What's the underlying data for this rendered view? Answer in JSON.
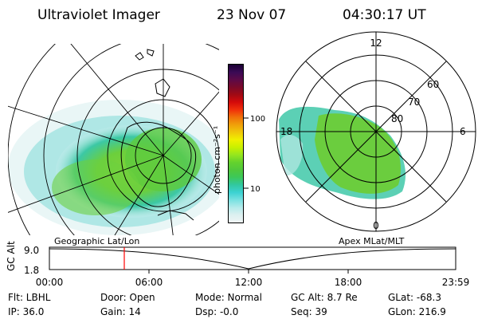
{
  "header": {
    "title": "Ultraviolet Imager",
    "date": "23 Nov 07",
    "time": "04:30:17 UT"
  },
  "colorbar": {
    "unit_label": "photon cm⁻²s⁻¹",
    "tick_100": "100",
    "tick_10": "10",
    "colors": [
      "#1a0033",
      "#3a0a55",
      "#5c0a48",
      "#7a0a2a",
      "#a00a14",
      "#d40a0a",
      "#f0300a",
      "#f0700a",
      "#f0a00a",
      "#f0c80a",
      "#f0f000",
      "#c8f000",
      "#96e61e",
      "#64d22d",
      "#50c83c",
      "#3cc85a",
      "#32c8a0",
      "#3cd2d2",
      "#78e1e1",
      "#b4ebeb",
      "#dcf0f0",
      "#f0f5f5"
    ]
  },
  "geo_panel": {
    "caption": "Geographic Lat/Lon"
  },
  "polar_panel": {
    "caption": "Apex MLat/MLT",
    "mlt_labels": {
      "top": "12",
      "left": "18",
      "right": "6",
      "bottom": "0"
    },
    "lat_labels": {
      "l60": "60",
      "l70": "70",
      "l80": "80"
    }
  },
  "alt_plot": {
    "ylabel": "GC Alt",
    "y_top": "9.0",
    "y_bottom": "1.8",
    "x_ticks": [
      "00:00",
      "06:00",
      "12:00",
      "18:00",
      "23:59"
    ],
    "marker_color": "#ff0000"
  },
  "footer": {
    "flt": "Flt: LBHL",
    "ip": "IP: 36.0",
    "door": "Door: Open",
    "gain": "Gain: 14",
    "mode": "Mode: Normal",
    "dsp": "Dsp:   -0.0",
    "gcalt": "GC Alt: 8.7 Re",
    "seq": "Seq: 39",
    "glat": "GLat: -68.3",
    "glon": "GLon: 216.9"
  }
}
